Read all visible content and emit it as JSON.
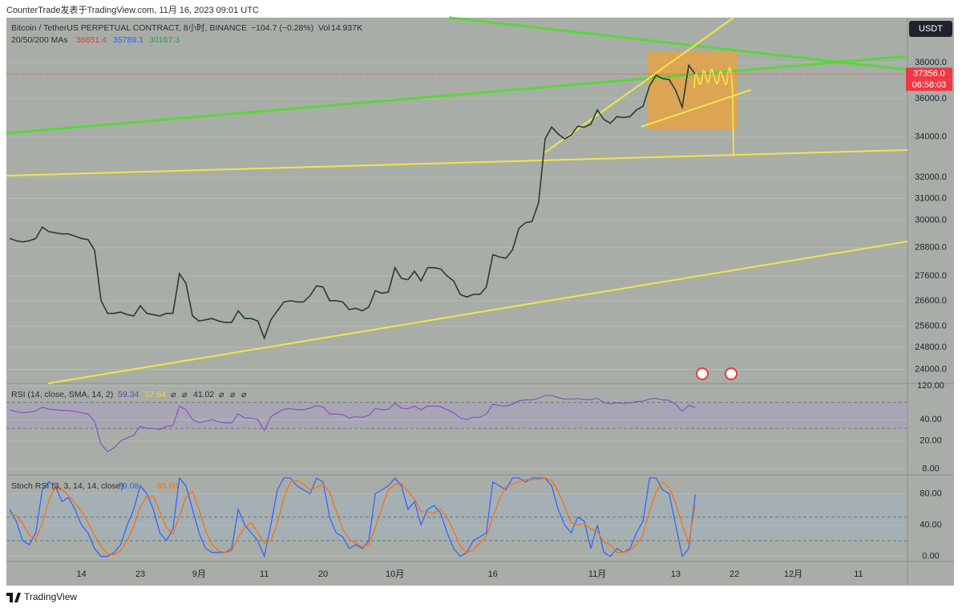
{
  "header": {
    "title": "CounterTrade发表于TradingView.com, 11月 16, 2023 09:01 UTC"
  },
  "currency": "USDT",
  "footer": {
    "brand": "TradingView"
  },
  "chart_data": [
    {
      "type": "line",
      "title": "Bitcoin / TetherUS PERPETUAL CONTRACT, 8小时, BINANCE",
      "change": "−104.7 (−0.28%)",
      "volume_label": "Vol",
      "volume": "14.937K",
      "indicator": "20/50/200 MAs",
      "legend_values": [
        "36651.4",
        "35789.1",
        "30167.3"
      ],
      "last_price": {
        "value": 37356,
        "label": "37356.0"
      },
      "countdown": "06:58:03",
      "log_scale": true,
      "grid": true,
      "categories": [
        null,
        null,
        null,
        null,
        null,
        null,
        null,
        null,
        null,
        null,
        null,
        "14",
        null,
        null,
        null,
        null,
        null,
        null,
        null,
        null,
        "23",
        null,
        null,
        null,
        null,
        null,
        null,
        null,
        null,
        "9月",
        null,
        null,
        null,
        null,
        null,
        null,
        null,
        null,
        null,
        "11",
        null,
        null,
        null,
        null,
        null,
        null,
        null,
        null,
        "20",
        null,
        null,
        null,
        null,
        null,
        null,
        null,
        null,
        null,
        null,
        "10月",
        null,
        null,
        null,
        null,
        null,
        null,
        null,
        null,
        null,
        null,
        null,
        null,
        null,
        null,
        "16",
        null,
        null,
        null,
        null,
        null,
        null,
        null,
        null,
        null,
        null,
        null,
        null,
        null,
        null,
        null,
        "11月",
        null,
        null,
        null,
        null,
        null,
        null,
        null,
        null,
        null,
        null,
        null,
        "13",
        null,
        null,
        null,
        null,
        null,
        null,
        null,
        null,
        "22",
        null,
        null,
        null,
        null,
        null,
        null,
        null,
        null,
        "12月",
        null,
        null,
        null,
        null,
        null,
        null,
        null,
        null,
        null,
        "11",
        null,
        null,
        null,
        null,
        null,
        null,
        null
      ],
      "series": [
        {
          "name": "BTCUSDT",
          "color": "#24402a",
          "values": [
            29200,
            29100,
            29050,
            29100,
            29200,
            29700,
            29500,
            29450,
            29400,
            29400,
            29300,
            29200,
            29150,
            28700,
            26600,
            26100,
            26100,
            26150,
            26050,
            26000,
            26400,
            26100,
            26050,
            26000,
            26100,
            26100,
            27700,
            27300,
            26000,
            25800,
            25850,
            25900,
            25800,
            25750,
            25750,
            26200,
            25900,
            25900,
            25800,
            25150,
            25850,
            26200,
            26550,
            26600,
            26550,
            26550,
            26800,
            27200,
            27150,
            26600,
            26600,
            26550,
            26250,
            26300,
            26200,
            26350,
            27000,
            26900,
            26950,
            27950,
            27500,
            27450,
            27800,
            27400,
            27950,
            27950,
            27900,
            27600,
            27400,
            26850,
            26750,
            26850,
            26850,
            27150,
            28500,
            28400,
            28350,
            28700,
            29650,
            29900,
            29950,
            30800,
            33900,
            34500,
            34150,
            33900,
            34100,
            34550,
            34500,
            34650,
            35400,
            34900,
            34700,
            35050,
            35000,
            35050,
            35400,
            35600,
            36700,
            37300,
            37100,
            37050,
            36450,
            35550,
            37850,
            37356,
            null,
            null,
            null,
            null,
            null,
            null,
            null,
            null,
            null,
            null,
            null,
            null,
            null,
            null,
            null,
            null,
            null,
            null,
            null,
            null,
            null,
            null,
            null,
            null,
            null,
            null,
            null,
            null,
            null,
            null,
            null,
            null
          ]
        }
      ],
      "ylim": [
        23500,
        40650
      ],
      "yticks": [
        {
          "value": 24000,
          "label": "24000.0"
        },
        {
          "value": 24800,
          "label": "24800.0"
        },
        {
          "value": 25600,
          "label": "25600.0"
        },
        {
          "value": 26600,
          "label": "26600.0"
        },
        {
          "value": 27600,
          "label": "27600.0"
        },
        {
          "value": 28800,
          "label": "28800.0"
        },
        {
          "value": 30000,
          "label": "30000.0"
        },
        {
          "value": 31000,
          "label": "31000.0"
        },
        {
          "value": 32000,
          "label": "32000.0"
        },
        {
          "value": 34000,
          "label": "34000.0"
        },
        {
          "value": 36000,
          "label": "36000.0"
        },
        {
          "value": 38000,
          "label": "38000.0"
        }
      ]
    },
    {
      "type": "line",
      "title": "RSI (14, close, SMA, 14, 2)",
      "legend_values": [
        "59.34",
        "57.54",
        "⌀",
        "⌀",
        "41.02",
        "⌀",
        "⌀",
        "⌀"
      ],
      "log_scale": true,
      "grid": true,
      "levels": [
        30,
        70
      ],
      "series": [
        {
          "name": "RSI",
          "color": "#7e57c2",
          "values": [
            55,
            52,
            50,
            51,
            53,
            60,
            56,
            55,
            54,
            54,
            52,
            50,
            48,
            38,
            18,
            14,
            16,
            20,
            22,
            24,
            32,
            30,
            30,
            29,
            32,
            33,
            62,
            55,
            40,
            36,
            38,
            40,
            37,
            36,
            36,
            48,
            42,
            42,
            40,
            28,
            44,
            50,
            56,
            57,
            55,
            55,
            58,
            63,
            60,
            48,
            48,
            47,
            42,
            44,
            43,
            46,
            58,
            55,
            56,
            68,
            58,
            57,
            62,
            55,
            62,
            62,
            61,
            55,
            50,
            42,
            40,
            43,
            43,
            48,
            66,
            63,
            62,
            66,
            74,
            76,
            76,
            80,
            88,
            88,
            82,
            78,
            78,
            79,
            77,
            76,
            80,
            70,
            67,
            69,
            68,
            69,
            72,
            73,
            78,
            80,
            76,
            75,
            66,
            52,
            64,
            59.34,
            null,
            null,
            null,
            null,
            null,
            null,
            null,
            null,
            null,
            null,
            null,
            null,
            null,
            null,
            null,
            null,
            null,
            null,
            null,
            null,
            null,
            null,
            null,
            null,
            null,
            null,
            null,
            null,
            null,
            null,
            null,
            null
          ]
        }
      ],
      "ylim": [
        6.6,
        130
      ],
      "yticks": [
        {
          "value": 8,
          "label": "8.00"
        },
        {
          "value": 20,
          "label": "20.00"
        },
        {
          "value": 40,
          "label": "40.00"
        },
        {
          "value": 120,
          "label": "120.00"
        }
      ]
    },
    {
      "type": "line",
      "title": "Stoch RSI (3, 3, 14, 14, close)",
      "legend_values": [
        "79.08",
        "65.60"
      ],
      "log_scale": false,
      "grid": true,
      "levels": [
        20,
        50,
        80
      ],
      "series": [
        {
          "name": "K",
          "color": "#2962ff",
          "values": [
            60,
            45,
            20,
            15,
            30,
            85,
            95,
            90,
            70,
            75,
            60,
            40,
            30,
            10,
            0,
            0,
            5,
            15,
            40,
            60,
            90,
            80,
            60,
            30,
            20,
            35,
            100,
            90,
            60,
            30,
            10,
            5,
            5,
            5,
            10,
            60,
            40,
            30,
            20,
            0,
            40,
            85,
            100,
            100,
            90,
            85,
            80,
            100,
            95,
            50,
            30,
            25,
            10,
            15,
            10,
            20,
            80,
            85,
            90,
            100,
            90,
            60,
            70,
            40,
            60,
            65,
            55,
            30,
            10,
            0,
            5,
            20,
            25,
            30,
            95,
            90,
            85,
            100,
            100,
            95,
            100,
            100,
            100,
            90,
            60,
            40,
            30,
            50,
            45,
            10,
            40,
            5,
            0,
            10,
            5,
            10,
            30,
            45,
            100,
            100,
            85,
            80,
            40,
            0,
            10,
            79.08,
            null,
            null,
            null,
            null,
            null,
            null,
            null,
            null,
            null,
            null,
            null,
            null,
            null,
            null,
            null,
            null,
            null,
            null,
            null,
            null,
            null,
            null,
            null,
            null,
            null,
            null,
            null,
            null,
            null,
            null,
            null,
            null
          ]
        },
        {
          "name": "D",
          "color": "#ff6d00",
          "values": [
            55,
            52,
            42,
            27,
            22,
            43,
            70,
            90,
            85,
            78,
            68,
            58,
            43,
            27,
            13,
            3,
            2,
            7,
            20,
            38,
            63,
            77,
            77,
            57,
            37,
            28,
            52,
            75,
            83,
            60,
            33,
            15,
            7,
            5,
            7,
            25,
            37,
            43,
            30,
            17,
            20,
            42,
            75,
            95,
            97,
            92,
            85,
            88,
            92,
            82,
            58,
            35,
            22,
            17,
            12,
            15,
            37,
            62,
            85,
            92,
            93,
            83,
            73,
            57,
            57,
            55,
            60,
            50,
            32,
            13,
            5,
            8,
            17,
            25,
            50,
            72,
            90,
            92,
            95,
            98,
            98,
            98,
            100,
            97,
            83,
            63,
            43,
            40,
            42,
            35,
            32,
            18,
            15,
            5,
            5,
            8,
            15,
            28,
            58,
            82,
            95,
            88,
            68,
            40,
            17,
            65.6,
            null,
            null,
            null,
            null,
            null,
            null,
            null,
            null,
            null,
            null,
            null,
            null,
            null,
            null,
            null,
            null,
            null,
            null,
            null,
            null,
            null,
            null,
            null,
            null,
            null,
            null,
            null,
            null,
            null,
            null,
            null,
            null
          ]
        }
      ],
      "ylim": [
        -6.5,
        102
      ],
      "yticks": [
        {
          "value": 0,
          "label": "0.00"
        },
        {
          "value": 40,
          "label": "40.00"
        },
        {
          "value": 80,
          "label": "80.00"
        }
      ]
    }
  ]
}
